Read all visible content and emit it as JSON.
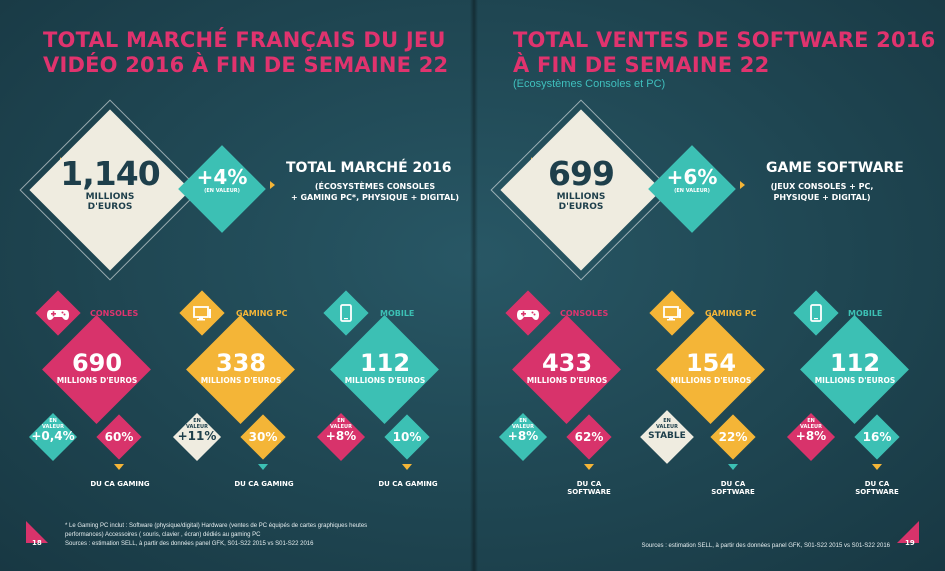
{
  "left": {
    "title_line1": "TOTAL MARCHÉ FRANÇAIS DU JEU",
    "title_line2": "VIDÉO 2016 À FIN DE SEMAINE 22",
    "total_value": "1,140",
    "total_unit_line1": "MILLIONS",
    "total_unit_line2": "D'EUROS",
    "growth": "+4%",
    "growth_note": "(EN VALEUR)",
    "headline": "TOTAL MARCHÉ 2016",
    "desc_line1": "(ÉCOSYSTÈMES CONSOLES",
    "desc_line2": "+ GAMING PC*, PHYSIQUE + DIGITAL)",
    "segments": [
      {
        "label": "CONSOLES",
        "value": "690",
        "unit": "MILLIONS D'EUROS",
        "growth_note_1": "EN",
        "growth_note_2": "VALEUR",
        "growth": "+0,4%",
        "share": "60%",
        "share_caption": "DU CA GAMING"
      },
      {
        "label": "GAMING PC",
        "value": "338",
        "unit": "MILLIONS D'EUROS",
        "growth_note_1": "EN",
        "growth_note_2": "VALEUR",
        "growth": "+11%",
        "share": "30%",
        "share_caption": "DU CA GAMING"
      },
      {
        "label": "MOBILE",
        "value": "112",
        "unit": "MILLIONS D'EUROS",
        "growth_note_1": "EN",
        "growth_note_2": "VALEUR",
        "growth": "+8%",
        "share": "10%",
        "share_caption": "DU CA GAMING"
      }
    ],
    "footnote_line1": "* Le Gaming PC inclut : Software (physique/digital) Hardware (ventes de PC équipés de cartes graphiques heutes",
    "footnote_line2": "performances) Accessoires ( souris, clavier , écran) dédiés au gaming PC",
    "footnote_line3": "Sources : estimation SELL, à partir des données panel GFK, S01-S22 2015 vs S01-S22 2016",
    "page": "18"
  },
  "right": {
    "title_line1": "TOTAL VENTES DE SOFTWARE 2016",
    "title_line2": "À FIN DE SEMAINE 22",
    "subtitle": "(Ecosystèmes Consoles et PC)",
    "total_value": "699",
    "total_unit_line1": "MILLIONS",
    "total_unit_line2": "D'EUROS",
    "growth": "+6%",
    "growth_note": "(EN VALEUR)",
    "headline": "GAME SOFTWARE",
    "desc_line1": "(JEUX CONSOLES + PC,",
    "desc_line2": "PHYSIQUE + DIGITAL)",
    "segments": [
      {
        "label": "CONSOLES",
        "value": "433",
        "unit": "MILLIONS D'EUROS",
        "growth_note_1": "EN",
        "growth_note_2": "VALEUR",
        "growth": "+8%",
        "share": "62%",
        "share_caption": "DU CA SOFTWARE"
      },
      {
        "label": "GAMING PC",
        "value": "154",
        "unit": "MILLIONS D'EUROS",
        "growth_note_1": "EN",
        "growth_note_2": "VALEUR",
        "growth": "STABLE",
        "share": "22%",
        "share_caption": "DU CA SOFTWARE"
      },
      {
        "label": "MOBILE",
        "value": "112",
        "unit": "MILLIONS D'EUROS",
        "growth_note_1": "EN",
        "growth_note_2": "VALEUR",
        "growth": "+8%",
        "share": "16%",
        "share_caption": "DU CA SOFTWARE"
      }
    ],
    "footnote": "Sources : estimation SELL, à partir des données panel GFK, S01-S22 2015 vs S01-S22 2016",
    "page": "19"
  },
  "icons": [
    "gamepad-icon",
    "monitor-icon",
    "smartphone-icon"
  ],
  "colors": {
    "background": "#1f4350",
    "pink": "#d8336b",
    "orange": "#f4b537",
    "teal": "#3cc0b4",
    "cream": "#efece0",
    "title_pink": "#e0336e",
    "subtitle_teal": "#3fbfbd"
  }
}
